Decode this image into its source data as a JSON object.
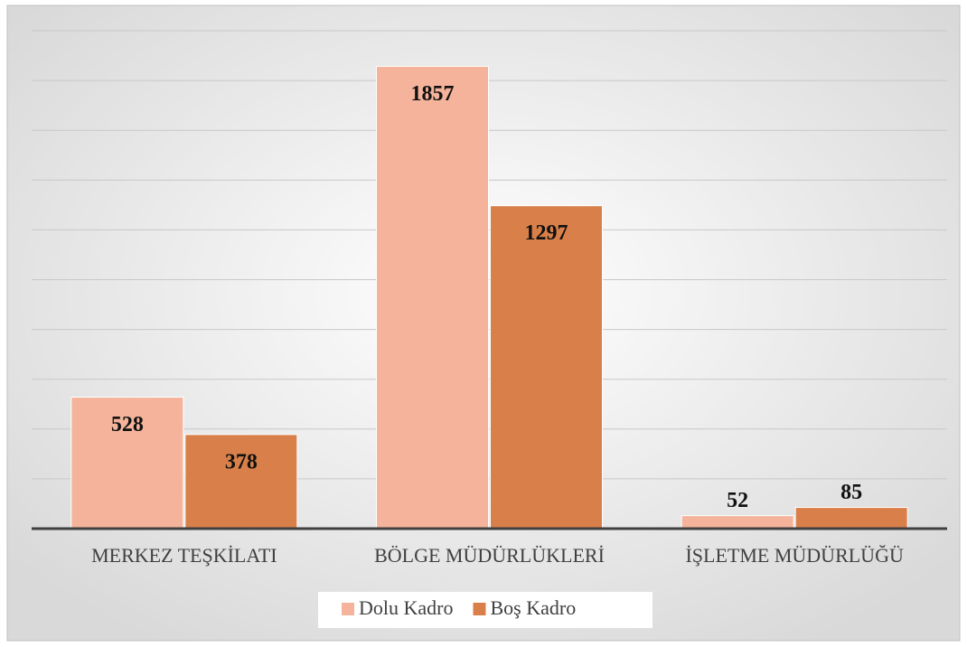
{
  "chart_data": {
    "type": "bar",
    "categories": [
      "MERKEZ TEŞKİLATI",
      "BÖLGE MÜDÜRLÜKLERİ",
      "İŞLETME MÜDÜRLÜĞÜ"
    ],
    "series": [
      {
        "name": "Dolu Kadro",
        "color": "#f4b39a",
        "values": [
          528,
          1857,
          52
        ]
      },
      {
        "name": "Boş Kadro",
        "color": "#d9804a",
        "values": [
          378,
          1297,
          85
        ]
      }
    ],
    "ylim": [
      0,
      2000
    ],
    "yticks": [
      0,
      200,
      400,
      600,
      800,
      1000,
      1200,
      1400,
      1600,
      1800,
      2000
    ],
    "grid": true,
    "legend": "bottom"
  }
}
